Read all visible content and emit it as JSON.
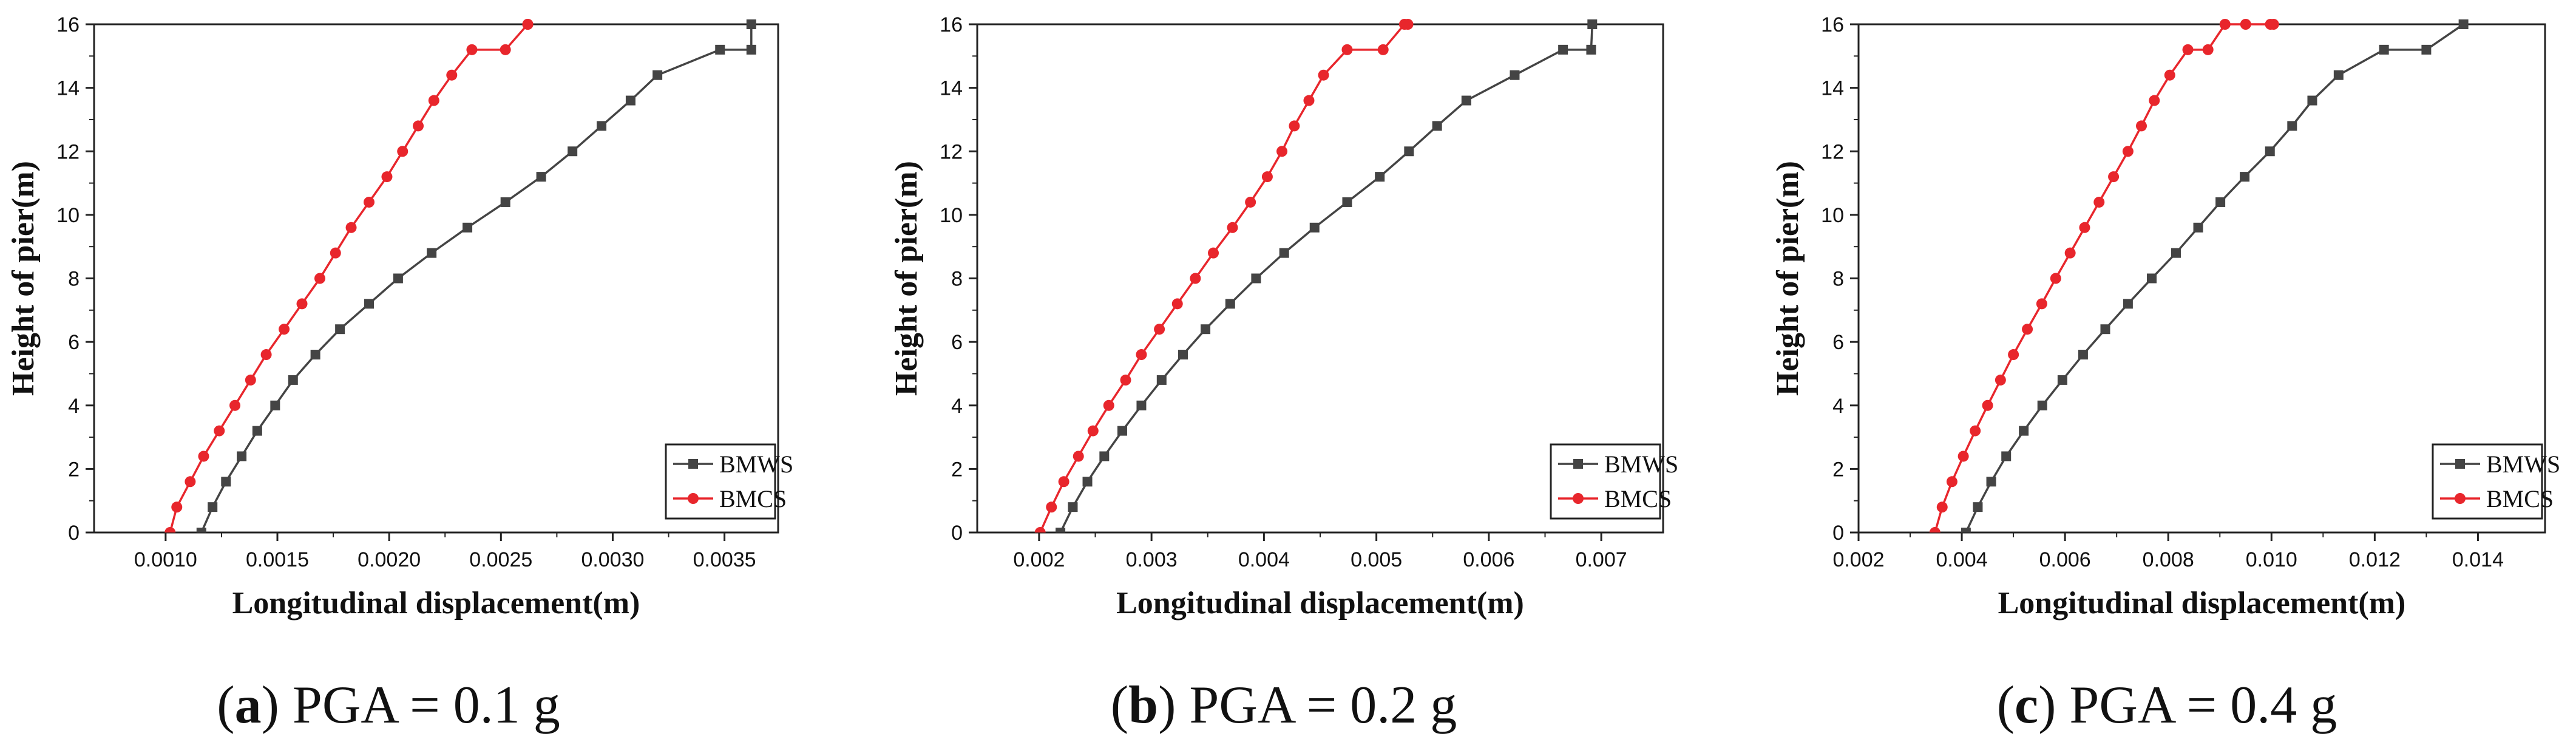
{
  "figure": {
    "panels": [
      {
        "letter": "a",
        "caption_text": "PGA = 0.1 g"
      },
      {
        "letter": "b",
        "caption_text": "PGA = 0.2 g"
      },
      {
        "letter": "c",
        "caption_text": "PGA = 0.4 g"
      }
    ]
  },
  "colors": {
    "BMWS": "#444444",
    "BMCS": "#e8262c"
  },
  "chart_data": [
    {
      "type": "line",
      "title": "(a) PGA = 0.1 g",
      "xlabel": "Longitudinal displacement(m)",
      "ylabel": "Height of pier(m)",
      "xlim": [
        0.00068,
        0.00374
      ],
      "ylim": [
        0,
        16
      ],
      "xticks": [
        0.001,
        0.0015,
        0.002,
        0.0025,
        0.003,
        0.0035
      ],
      "xtick_labels": [
        "0.0010",
        "0.0015",
        "0.0020",
        "0.0025",
        "0.0030",
        "0.0035"
      ],
      "yticks": [
        0,
        2,
        4,
        6,
        8,
        10,
        12,
        14,
        16
      ],
      "ytick_labels": [
        "0",
        "2",
        "4",
        "6",
        "8",
        "10",
        "12",
        "14",
        "16"
      ],
      "legend": "bottom-right",
      "series": [
        {
          "name": "BMWS",
          "marker": "square",
          "x": [
            0.00116,
            0.00121,
            0.00127,
            0.00134,
            0.00141,
            0.00149,
            0.00157,
            0.00167,
            0.00178,
            0.00191,
            0.00204,
            0.00219,
            0.00235,
            0.00252,
            0.00268,
            0.00282,
            0.00295,
            0.00308,
            0.0032,
            0.00348,
            0.00362,
            0.00362
          ],
          "y": [
            0,
            0.8,
            1.6,
            2.4,
            3.2,
            4.0,
            4.8,
            5.6,
            6.4,
            7.2,
            8.0,
            8.8,
            9.6,
            10.4,
            11.2,
            12.0,
            12.8,
            13.6,
            14.4,
            15.2,
            15.2,
            16.0
          ]
        },
        {
          "name": "BMCS",
          "marker": "circle",
          "x": [
            0.00102,
            0.00105,
            0.00111,
            0.00117,
            0.00124,
            0.00131,
            0.00138,
            0.00145,
            0.00153,
            0.00161,
            0.00169,
            0.00176,
            0.00183,
            0.00191,
            0.00199,
            0.00206,
            0.00213,
            0.0022,
            0.00228,
            0.00237,
            0.00252,
            0.00262,
            0.00262
          ],
          "y": [
            0,
            0.8,
            1.6,
            2.4,
            3.2,
            4.0,
            4.8,
            5.6,
            6.4,
            7.2,
            8.0,
            8.8,
            9.6,
            10.4,
            11.2,
            12.0,
            12.8,
            13.6,
            14.4,
            15.2,
            15.2,
            16.0,
            16.0
          ]
        }
      ]
    },
    {
      "type": "line",
      "title": "(b) PGA = 0.2 g",
      "xlabel": "Longitudinal displacement(m)",
      "ylabel": "Height of pier(m)",
      "xlim": [
        0.00145,
        0.00755
      ],
      "ylim": [
        0,
        16
      ],
      "xticks": [
        0.002,
        0.003,
        0.004,
        0.005,
        0.006,
        0.007
      ],
      "xtick_labels": [
        "0.002",
        "0.003",
        "0.004",
        "0.005",
        "0.006",
        "0.007"
      ],
      "yticks": [
        0,
        2,
        4,
        6,
        8,
        10,
        12,
        14,
        16
      ],
      "ytick_labels": [
        "0",
        "2",
        "4",
        "6",
        "8",
        "10",
        "12",
        "14",
        "16"
      ],
      "legend": "bottom-right",
      "series": [
        {
          "name": "BMWS",
          "marker": "square",
          "x": [
            0.00219,
            0.0023,
            0.00243,
            0.00258,
            0.00274,
            0.00291,
            0.00309,
            0.00328,
            0.00348,
            0.0037,
            0.00393,
            0.00418,
            0.00445,
            0.00474,
            0.00503,
            0.00529,
            0.00554,
            0.0058,
            0.00623,
            0.00666,
            0.00691,
            0.00692
          ],
          "y": [
            0,
            0.8,
            1.6,
            2.4,
            3.2,
            4.0,
            4.8,
            5.6,
            6.4,
            7.2,
            8.0,
            8.8,
            9.6,
            10.4,
            11.2,
            12.0,
            12.8,
            13.6,
            14.4,
            15.2,
            15.2,
            16.0
          ]
        },
        {
          "name": "BMCS",
          "marker": "circle",
          "x": [
            0.00201,
            0.00211,
            0.00222,
            0.00235,
            0.00248,
            0.00262,
            0.00277,
            0.00291,
            0.00307,
            0.00323,
            0.00339,
            0.00355,
            0.00372,
            0.00388,
            0.00403,
            0.00416,
            0.00427,
            0.0044,
            0.00453,
            0.00474,
            0.00506,
            0.00525,
            0.00528
          ],
          "y": [
            0,
            0.8,
            1.6,
            2.4,
            3.2,
            4.0,
            4.8,
            5.6,
            6.4,
            7.2,
            8.0,
            8.8,
            9.6,
            10.4,
            11.2,
            12.0,
            12.8,
            13.6,
            14.4,
            15.2,
            15.2,
            16.0,
            16.0
          ]
        }
      ]
    },
    {
      "type": "line",
      "title": "(c) PGA = 0.4 g",
      "xlabel": "Longitudinal displacement(m)",
      "ylabel": "Height of pier(m)",
      "xlim": [
        0.002,
        0.0153
      ],
      "ylim": [
        0,
        16
      ],
      "xticks": [
        0.002,
        0.004,
        0.006,
        0.008,
        0.01,
        0.012,
        0.014
      ],
      "xtick_labels": [
        "0.002",
        "0.004",
        "0.006",
        "0.008",
        "0.010",
        "0.012",
        "0.014"
      ],
      "yticks": [
        0,
        2,
        4,
        6,
        8,
        10,
        12,
        14,
        16
      ],
      "ytick_labels": [
        "0",
        "2",
        "4",
        "6",
        "8",
        "10",
        "12",
        "14",
        "16"
      ],
      "legend": "bottom-right",
      "series": [
        {
          "name": "BMWS",
          "marker": "square",
          "x": [
            0.00408,
            0.00431,
            0.00457,
            0.00486,
            0.0052,
            0.00556,
            0.00595,
            0.00635,
            0.00678,
            0.00722,
            0.00768,
            0.00815,
            0.00858,
            0.00901,
            0.00948,
            0.00997,
            0.0104,
            0.01079,
            0.0113,
            0.01218,
            0.013,
            0.01372
          ],
          "y": [
            0,
            0.8,
            1.6,
            2.4,
            3.2,
            4.0,
            4.8,
            5.6,
            6.4,
            7.2,
            8.0,
            8.8,
            9.6,
            10.4,
            11.2,
            12.0,
            12.8,
            13.6,
            14.4,
            15.2,
            15.2,
            16.0
          ]
        },
        {
          "name": "BMCS",
          "marker": "circle",
          "x": [
            0.00348,
            0.00362,
            0.00381,
            0.00403,
            0.00426,
            0.0045,
            0.00475,
            0.005,
            0.00527,
            0.00555,
            0.00582,
            0.0061,
            0.00638,
            0.00666,
            0.00694,
            0.00722,
            0.00748,
            0.00773,
            0.00803,
            0.00838,
            0.00877,
            0.0091,
            0.0095,
            0.00998,
            0.01004
          ],
          "y": [
            0,
            0.8,
            1.6,
            2.4,
            3.2,
            4.0,
            4.8,
            5.6,
            6.4,
            7.2,
            8.0,
            8.8,
            9.6,
            10.4,
            11.2,
            12.0,
            12.8,
            13.6,
            14.4,
            15.2,
            15.2,
            16.0,
            16.0,
            16.0,
            16.0
          ]
        }
      ]
    }
  ]
}
